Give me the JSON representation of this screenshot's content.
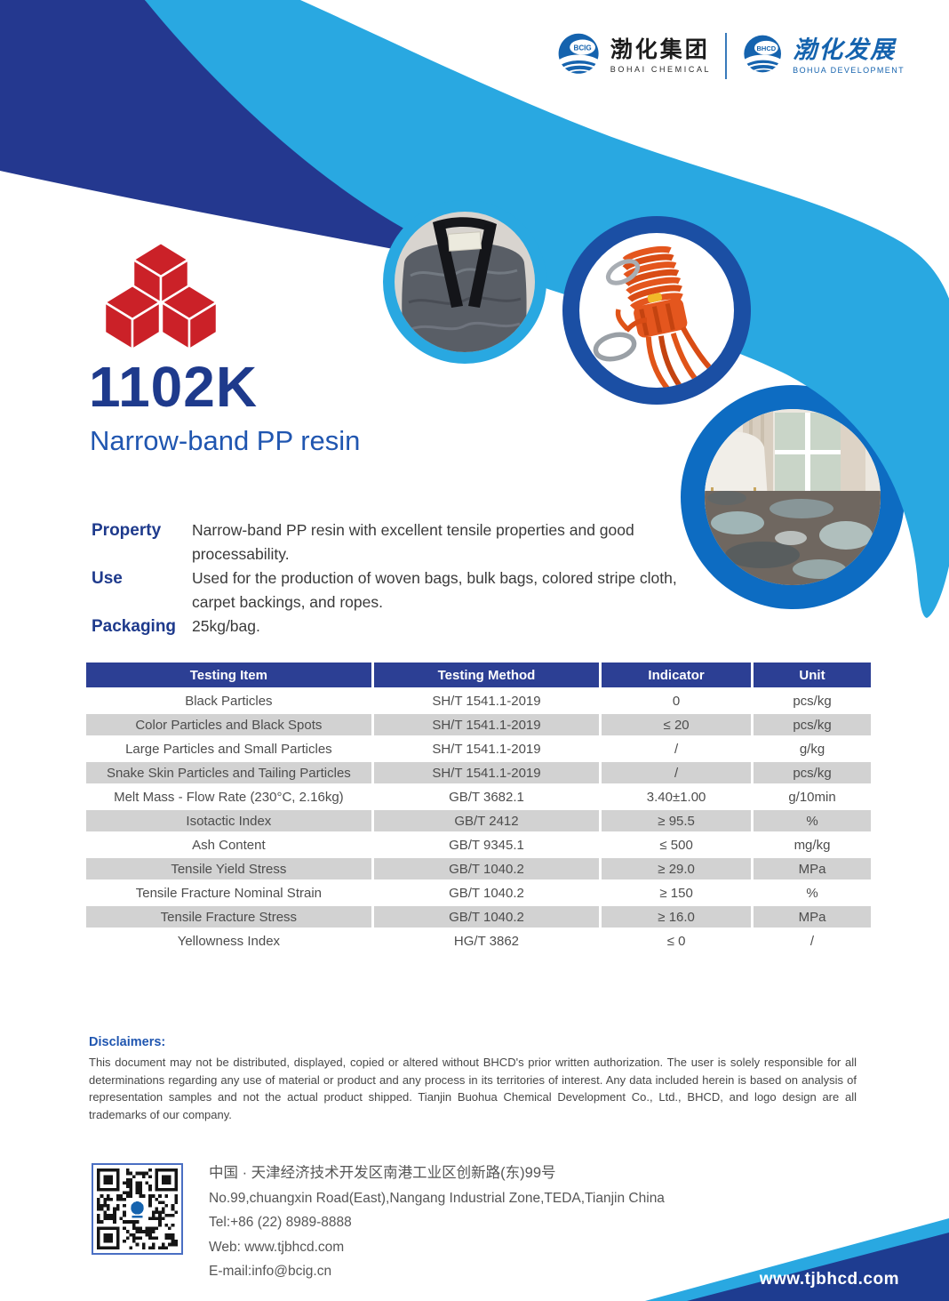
{
  "colors": {
    "navy_swoosh": "#24388f",
    "cyan_swoosh": "#29a8e1",
    "rope_ring": "#1b4fa4",
    "carpet_ring": "#0d6cc2",
    "title_navy": "#1e3a8c",
    "accent_blue": "#2056b0",
    "cube_red": "#cb2128",
    "table_header_bg": "#2c3f94",
    "row_gray": "#d2d2d2",
    "wedge_navy": "#1e3c90",
    "logo_blue": "#1563ae"
  },
  "header": {
    "logo_left": {
      "emblem": "BCIG",
      "cn": "渤化集团",
      "en": "BOHAI CHEMICAL"
    },
    "logo_right": {
      "emblem": "BHCD",
      "cn": "渤化发展",
      "en": "BOHUA DEVELOPMENT"
    }
  },
  "hero_photos": [
    "woven-bag-photo",
    "orange-rope-photo",
    "carpet-room-photo"
  ],
  "product": {
    "code": "1102K",
    "name": "Narrow-band PP resin"
  },
  "details": [
    {
      "label": "Property",
      "text": "Narrow-band PP resin with excellent tensile properties and good processability."
    },
    {
      "label": "Use",
      "text": "Used for the production of woven bags, bulk bags, colored stripe cloth, carpet backings, and ropes."
    },
    {
      "label": "Packaging",
      "text": "25kg/bag."
    }
  ],
  "table": {
    "headers": [
      "Testing Item",
      "Testing Method",
      "Indicator",
      "Unit"
    ],
    "rows": [
      [
        "Black Particles",
        "SH/T 1541.1-2019",
        "0",
        "pcs/kg"
      ],
      [
        "Color Particles and Black Spots",
        "SH/T 1541.1-2019",
        "≤ 20",
        "pcs/kg"
      ],
      [
        "Large Particles and Small Particles",
        "SH/T 1541.1-2019",
        "/",
        "g/kg"
      ],
      [
        "Snake Skin Particles and Tailing Particles",
        "SH/T 1541.1-2019",
        "/",
        "pcs/kg"
      ],
      [
        "Melt Mass - Flow Rate (230°C, 2.16kg)",
        "GB/T 3682.1",
        "3.40±1.00",
        "g/10min"
      ],
      [
        "Isotactic Index",
        "GB/T 2412",
        "≥ 95.5",
        "%"
      ],
      [
        "Ash Content",
        "GB/T 9345.1",
        "≤ 500",
        "mg/kg"
      ],
      [
        "Tensile Yield Stress",
        "GB/T 1040.2",
        "≥ 29.0",
        "MPa"
      ],
      [
        "Tensile Fracture Nominal Strain",
        "GB/T 1040.2",
        "≥ 150",
        "%"
      ],
      [
        "Tensile Fracture Stress",
        "GB/T 1040.2",
        "≥ 16.0",
        "MPa"
      ],
      [
        "Yellowness Index",
        "HG/T 3862",
        "≤ 0",
        "/"
      ]
    ]
  },
  "disclaimers": {
    "title": "Disclaimers:",
    "text": "This document may not be distributed, displayed, copied or altered without BHCD's prior written authorization. The user is solely responsible for all determinations regarding any use of material or product and any process in its territories of interest. Any data included herein is based on analysis of representation samples and not the actual product shipped. Tianjin Buohua Chemical Development Co., Ltd., BHCD, and logo design are all trademarks of our company."
  },
  "footer": {
    "address_cn": "中国 · 天津经济技术开发区南港工业区创新路(东)99号",
    "address_en": "No.99,chuangxin Road(East),Nangang Industrial Zone,TEDA,Tianjin China",
    "tel": "Tel:+86 (22) 8989-8888",
    "web": "Web: www.tjbhcd.com",
    "email": "E-mail:info@bcig.cn"
  },
  "bottom": {
    "site": "www.tjbhcd.com"
  }
}
